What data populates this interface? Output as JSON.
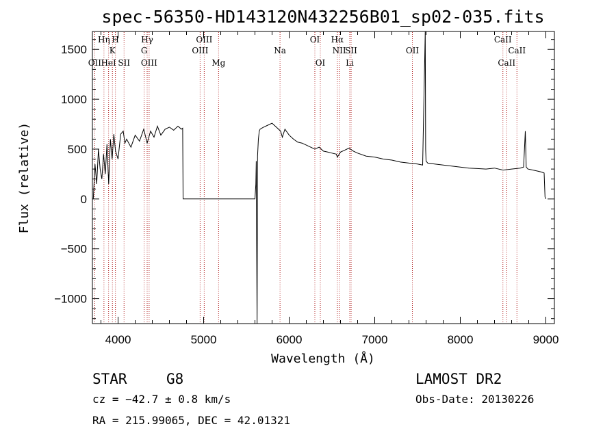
{
  "chart_data": {
    "type": "line",
    "title": "spec-56350-HD143120N432256B01_sp02-035.fits",
    "xlabel": "Wavelength (Å)",
    "ylabel": "Flux (relative)",
    "xlim": [
      3700,
      9100
    ],
    "ylim": [
      -1250,
      1680
    ],
    "x_ticks": [
      4000,
      5000,
      6000,
      7000,
      8000,
      9000
    ],
    "y_ticks": [
      -1000,
      -500,
      0,
      500,
      1000,
      1500
    ],
    "y_tick_labels": [
      "−1000",
      "−500",
      "0",
      "500",
      "1000",
      "1500"
    ],
    "grid": false,
    "series": [
      {
        "color": "#000000",
        "x": [
          3710,
          3730,
          3750,
          3770,
          3790,
          3810,
          3830,
          3850,
          3870,
          3890,
          3910,
          3930,
          3950,
          3970,
          4000,
          4030,
          4060,
          4080,
          4100,
          4150,
          4200,
          4250,
          4300,
          4340,
          4380,
          4420,
          4460,
          4500,
          4550,
          4600,
          4650,
          4700,
          4740,
          4755,
          4760,
          5000,
          5300,
          5600,
          5610,
          5615,
          5625,
          5630,
          5640,
          5650,
          5660,
          5700,
          5750,
          5800,
          5850,
          5900,
          5920,
          5950,
          6000,
          6050,
          6100,
          6150,
          6200,
          6250,
          6300,
          6350,
          6400,
          6450,
          6500,
          6550,
          6563,
          6600,
          6650,
          6700,
          6750,
          6800,
          6900,
          7000,
          7100,
          7200,
          7300,
          7400,
          7500,
          7560,
          7590,
          7595,
          7600,
          7620,
          7700,
          7800,
          7900,
          8000,
          8100,
          8200,
          8300,
          8400,
          8500,
          8600,
          8700,
          8740,
          8760,
          8770,
          8790,
          8850,
          8900,
          8950,
          8980,
          8990,
          9000
        ],
        "y": [
          0,
          350,
          150,
          500,
          300,
          200,
          450,
          250,
          550,
          150,
          600,
          400,
          650,
          480,
          400,
          650,
          680,
          560,
          600,
          520,
          640,
          580,
          700,
          560,
          680,
          620,
          730,
          640,
          700,
          720,
          690,
          730,
          700,
          710,
          0,
          0,
          0,
          0,
          150,
          380,
          -1250,
          430,
          600,
          680,
          700,
          720,
          740,
          760,
          720,
          680,
          620,
          700,
          640,
          600,
          570,
          560,
          540,
          520,
          500,
          520,
          480,
          470,
          460,
          450,
          420,
          470,
          490,
          510,
          480,
          460,
          430,
          420,
          400,
          390,
          370,
          360,
          350,
          340,
          1680,
          500,
          380,
          360,
          350,
          340,
          330,
          320,
          310,
          305,
          300,
          310,
          290,
          300,
          310,
          320,
          680,
          320,
          300,
          290,
          280,
          270,
          260,
          20,
          0
        ]
      }
    ],
    "annotations": [
      {
        "wavelength": 3727,
        "label": "OII",
        "row": 3
      },
      {
        "wavelength": 3835,
        "label": "Hη",
        "row": 1
      },
      {
        "wavelength": 3889,
        "label": "HeI",
        "row": 3
      },
      {
        "wavelength": 3934,
        "label": "K",
        "row": 2
      },
      {
        "wavelength": 3969,
        "label": "H",
        "row": 1
      },
      {
        "wavelength": 4070,
        "label": "SII",
        "row": 3
      },
      {
        "wavelength": 4305,
        "label": "G",
        "row": 2
      },
      {
        "wavelength": 4340,
        "label": "Hγ",
        "row": 1
      },
      {
        "wavelength": 4363,
        "label": "OIII",
        "row": 3
      },
      {
        "wavelength": 4959,
        "label": "OIII",
        "row": 2
      },
      {
        "wavelength": 5007,
        "label": "OIII",
        "row": 1
      },
      {
        "wavelength": 5175,
        "label": "Mg",
        "row": 3
      },
      {
        "wavelength": 5893,
        "label": "Na",
        "row": 2
      },
      {
        "wavelength": 6300,
        "label": "OI",
        "row": 1
      },
      {
        "wavelength": 6364,
        "label": "OI",
        "row": 3
      },
      {
        "wavelength": 6563,
        "label": "Hα",
        "row": 1
      },
      {
        "wavelength": 6585,
        "label": "NII",
        "row": 2
      },
      {
        "wavelength": 6708,
        "label": "Li",
        "row": 3
      },
      {
        "wavelength": 6724,
        "label": "SII",
        "row": 2
      },
      {
        "wavelength": 7440,
        "label": "OII",
        "row": 2
      },
      {
        "wavelength": 8498,
        "label": "CaII",
        "row": 1
      },
      {
        "wavelength": 8542,
        "label": "CaII",
        "row": 3
      },
      {
        "wavelength": 8662,
        "label": "CaII",
        "row": 2
      }
    ]
  },
  "info": {
    "object_type": "STAR",
    "subclass": "G8",
    "survey": "LAMOST DR2",
    "velocity": "cz = −42.7 ± 0.8 km/s",
    "obs_date": "Obs-Date: 20130226",
    "coords": "RA = 215.99065, DEC =  42.01321"
  }
}
